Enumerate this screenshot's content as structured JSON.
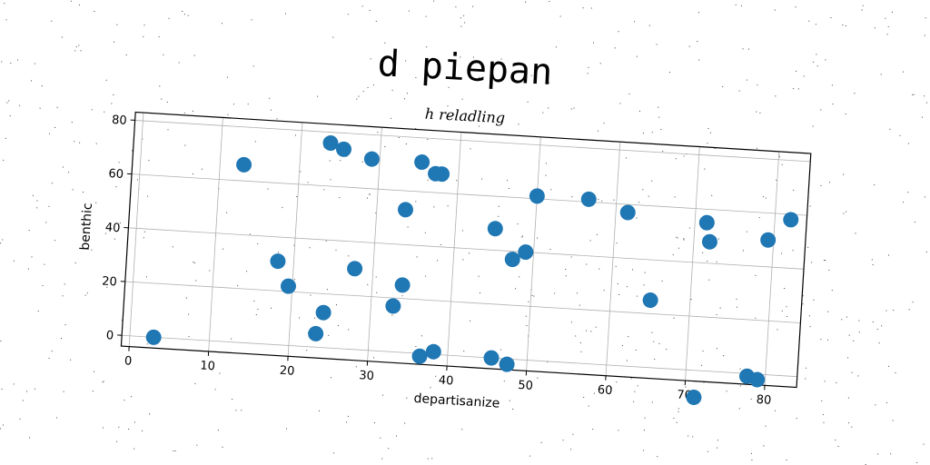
{
  "title": "d piepan",
  "chart_data": {
    "type": "scatter",
    "title": "d piepan",
    "subtitle": "h reladling",
    "xlabel": "departisanize",
    "ylabel": "benthic",
    "xlim": [
      -1,
      84
    ],
    "ylim": [
      -4,
      83
    ],
    "xticks": [
      0,
      10,
      20,
      30,
      40,
      50,
      60,
      70,
      80
    ],
    "yticks": [
      0,
      20,
      40,
      60,
      80
    ],
    "grid": true,
    "color": "#1f77b4",
    "x": [
      3,
      13,
      18,
      19.5,
      23.3,
      23.7,
      24.1,
      25.4,
      27.7,
      29,
      32.8,
      33.8,
      33.6,
      35.3,
      36.5,
      37.1,
      37.9,
      38.2,
      45,
      45.5,
      47.4,
      47.5,
      49,
      50,
      56.5,
      61.5,
      65,
      71.2,
      71.5,
      72,
      77.7,
      79,
      79.3,
      82
    ],
    "y": [
      0,
      66,
      31,
      22,
      5,
      76,
      13,
      74,
      30,
      71,
      17,
      25,
      53,
      71,
      -1,
      67,
      67,
      1,
      48,
      0,
      37,
      -2,
      40,
      61,
      61,
      57,
      25,
      -10,
      55,
      48,
      -1,
      -2,
      50,
      58
    ]
  }
}
